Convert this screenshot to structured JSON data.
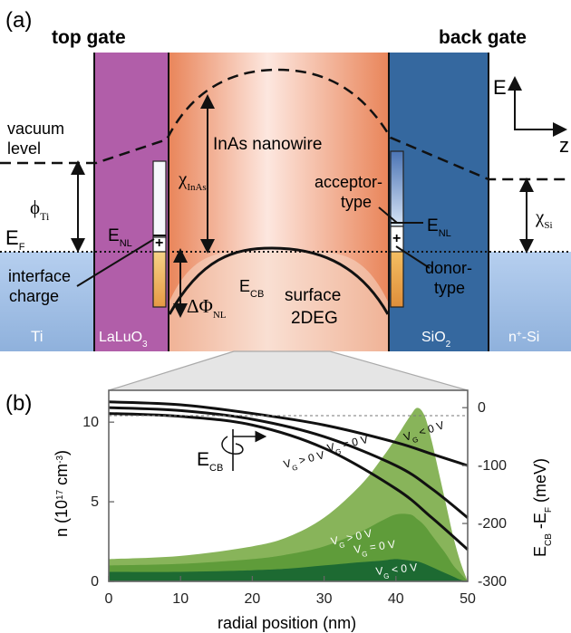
{
  "panel_a": {
    "label": "(a)",
    "top_gate": "top gate",
    "back_gate": "back gate",
    "axis_E": "E",
    "axis_z": "z",
    "vacuum_line1": "vacuum",
    "vacuum_line2": "level",
    "phi_main": "ϕ",
    "phi_sub": "Ti",
    "ef_main": "E",
    "ef_sub": "F",
    "enl_main": "E",
    "enl_sub": "NL",
    "plus": "+",
    "interface_line1": "interface",
    "interface_line2": "charge",
    "delta_phi_main": "ΔΦ",
    "delta_phi_sub": "NL",
    "chi_inas_main": "χ",
    "chi_inas_sub": "InAs",
    "inas_nanowire": "InAs nanowire",
    "ecb_main": "E",
    "ecb_sub": "CB",
    "surface_line1": "surface",
    "surface_line2": "2DEG",
    "acceptor_line1": "acceptor-",
    "acceptor_line2": "type",
    "donor_line1": "donor-",
    "donor_line2": "type",
    "chi_si_main": "χ",
    "chi_si_sub": "Si",
    "ti": "Ti",
    "lalu_main": "LaLuO",
    "lalu_sub": "3",
    "sio_main": "SiO",
    "sio_sub": "2",
    "nsi_main": "n",
    "nsi_sup": "+",
    "nsi_tail": "-Si",
    "colors": {
      "ti_blue": "#6f93c0",
      "lalu_purple": "#b062a8",
      "inas_orange": "#e9855a",
      "sio2_blue": "#35689f",
      "light_band": "#a9c6e6",
      "donor_orange": "#e89a43"
    }
  },
  "panel_b": {
    "label": "(b)",
    "ecb_main": "E",
    "ecb_sub": "CB",
    "vg_labels": {
      "neg_main": "V",
      "neg_sub": "G",
      "neg_tail": " < 0 V",
      "zero_main": "V",
      "zero_sub": "G",
      "zero_tail": " = 0 V",
      "pos_main": "V",
      "pos_sub": "G",
      "pos_tail": " > 0 V"
    },
    "y_left_label": "n (10",
    "y_left_exp": "17",
    "y_left_unit": " cm",
    "y_left_unit_exp": "-3",
    "y_left_close": ")",
    "y_right_main": "E",
    "y_right_sub1": "CB",
    "y_right_mid": " -E",
    "y_right_sub2": "F",
    "y_right_unit": " (meV)"
  },
  "chart_data": {
    "type": "area",
    "xlabel": "radial position (nm)",
    "ylabel_left": "n (10^17 cm^-3)",
    "ylabel_right": "E_CB - E_F (meV)",
    "xlim": [
      0,
      50
    ],
    "ylim_left": [
      0,
      12
    ],
    "ylim_right": [
      -300,
      30
    ],
    "x_ticks": [
      0,
      10,
      20,
      30,
      40,
      50
    ],
    "y_left_ticks": [
      0,
      5,
      10
    ],
    "y_right_ticks": [
      0,
      -100,
      -200,
      -300
    ],
    "grid": false,
    "legend": "inline labels",
    "density_series": [
      {
        "name": "V_G > 0 V",
        "color": "#88b45a",
        "x": [
          0,
          10,
          20,
          25,
          30,
          35,
          38,
          40,
          42,
          43,
          44,
          45,
          46,
          47,
          48,
          49,
          50
        ],
        "values": [
          1.4,
          1.6,
          2.2,
          2.8,
          4.0,
          6.0,
          7.7,
          9.0,
          10.4,
          10.9,
          10.4,
          8.8,
          6.8,
          4.8,
          2.8,
          1.2,
          0.0
        ]
      },
      {
        "name": "V_G = 0 V",
        "color": "#5f9c3a",
        "x": [
          0,
          10,
          20,
          25,
          30,
          35,
          38,
          40,
          42,
          43,
          44,
          45,
          46,
          47,
          48,
          49,
          50
        ],
        "values": [
          1.0,
          1.1,
          1.4,
          1.7,
          2.2,
          3.1,
          3.8,
          4.2,
          4.2,
          3.9,
          3.5,
          2.9,
          2.3,
          1.7,
          1.0,
          0.5,
          0.0
        ]
      },
      {
        "name": "V_G < 0 V",
        "color": "#1d6a32",
        "x": [
          0,
          10,
          20,
          25,
          30,
          35,
          38,
          40,
          42,
          43,
          44,
          45,
          46,
          47,
          48,
          49,
          50
        ],
        "values": [
          0.6,
          0.6,
          0.7,
          0.8,
          1.0,
          1.2,
          1.3,
          1.4,
          1.3,
          1.25,
          1.1,
          0.9,
          0.7,
          0.5,
          0.3,
          0.1,
          0.0
        ]
      }
    ],
    "ecb_series": [
      {
        "name": "V_G < 0 V",
        "x": [
          0,
          10,
          20,
          30,
          40,
          45,
          50
        ],
        "values": [
          10,
          5,
          -10,
          -30,
          -60,
          -80,
          -100
        ]
      },
      {
        "name": "V_G = 0 V",
        "x": [
          0,
          10,
          20,
          30,
          40,
          45,
          50
        ],
        "values": [
          0,
          -5,
          -20,
          -50,
          -100,
          -140,
          -190
        ]
      },
      {
        "name": "V_G > 0 V",
        "x": [
          0,
          10,
          20,
          30,
          40,
          45,
          50
        ],
        "values": [
          -10,
          -15,
          -30,
          -70,
          -140,
          -190,
          -245
        ]
      }
    ]
  }
}
